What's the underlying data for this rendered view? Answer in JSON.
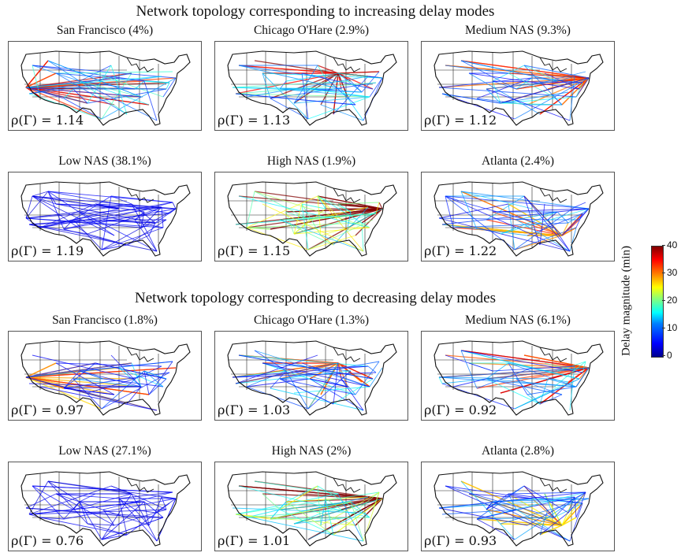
{
  "sections": [
    {
      "title": "Network topology corresponding to increasing delay modes",
      "panels": [
        {
          "title": "San Francisco (4%)",
          "rho": "1.14",
          "hub": "sf",
          "intensity": 0.55
        },
        {
          "title": "Chicago O'Hare (2.9%)",
          "rho": "1.13",
          "hub": "chicago",
          "intensity": 0.6
        },
        {
          "title": "Medium NAS (9.3%)",
          "rho": "1.12",
          "hub": "east",
          "intensity": 0.5
        },
        {
          "title": "Low NAS (38.1%)",
          "rho": "1.19",
          "hub": "none",
          "intensity": 0.05
        },
        {
          "title": "High NAS (1.9%)",
          "rho": "1.15",
          "hub": "east",
          "intensity": 0.92
        },
        {
          "title": "Atlanta (2.4%)",
          "rho": "1.22",
          "hub": "atlanta",
          "intensity": 0.4
        }
      ]
    },
    {
      "title": "Network topology corresponding to decreasing delay modes",
      "panels": [
        {
          "title": "San Francisco (1.8%)",
          "rho": "0.97",
          "hub": "sf",
          "intensity": 0.4
        },
        {
          "title": "Chicago O'Hare (1.3%)",
          "rho": "1.03",
          "hub": "chicago",
          "intensity": 0.45
        },
        {
          "title": "Medium NAS (6.1%)",
          "rho": "0.92",
          "hub": "east",
          "intensity": 0.5
        },
        {
          "title": "Low NAS (27.1%)",
          "rho": "0.76",
          "hub": "none",
          "intensity": 0.05
        },
        {
          "title": "High NAS (2%)",
          "rho": "1.01",
          "hub": "east",
          "intensity": 0.88
        },
        {
          "title": "Atlanta (2.8%)",
          "rho": "0.93",
          "hub": "atlanta",
          "intensity": 0.35
        }
      ]
    }
  ],
  "rho_prefix": "ρ(Γ) = ",
  "colorbar": {
    "label": "Delay magnitude (min)",
    "ticks": [
      "40",
      "30",
      "20",
      "10",
      "0"
    ],
    "range": [
      0,
      40
    ]
  }
}
